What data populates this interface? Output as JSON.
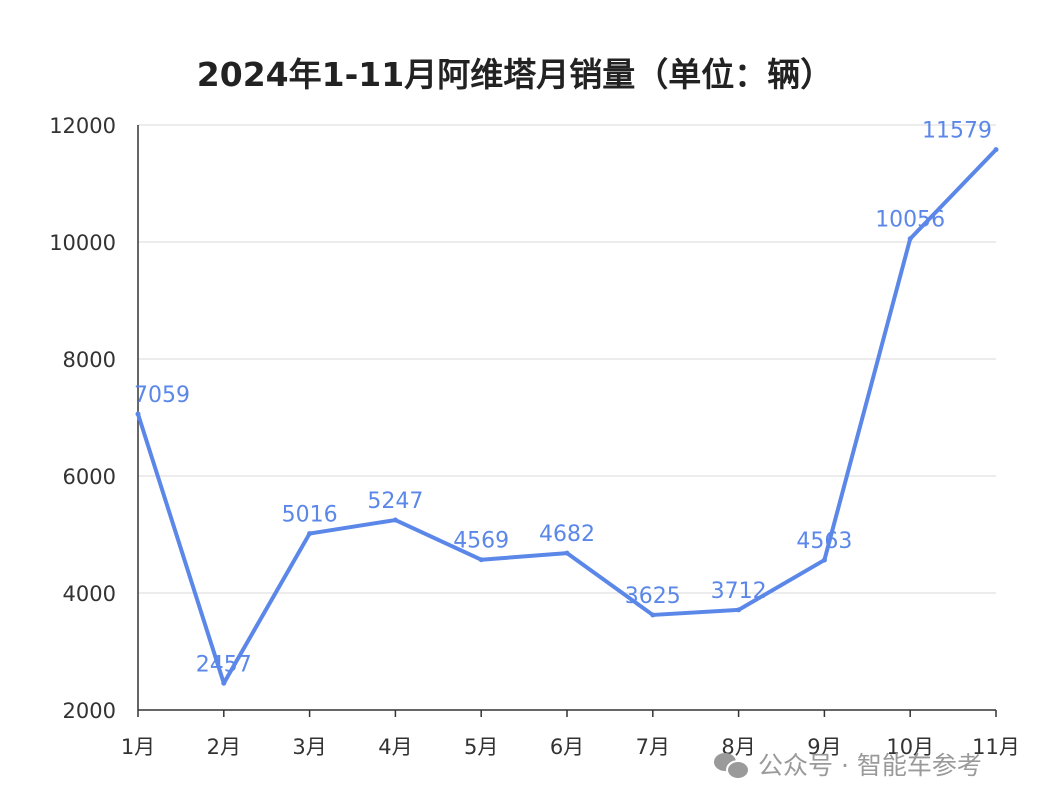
{
  "chart_data": {
    "type": "line",
    "title": "2024年1-11月阿维塔月销量（单位：辆）",
    "categories": [
      "1月",
      "2月",
      "3月",
      "4月",
      "5月",
      "6月",
      "7月",
      "8月",
      "9月",
      "10月",
      "11月"
    ],
    "series": [
      {
        "values": [
          7059,
          2457,
          5016,
          5247,
          4569,
          4682,
          3625,
          3712,
          4563,
          10056,
          11579
        ]
      }
    ],
    "yticks": [
      2000,
      4000,
      6000,
      8000,
      10000,
      12000
    ],
    "ylim": [
      2000,
      12000
    ],
    "grid": true,
    "legend": "none",
    "colors": {
      "line": "#5b87e8",
      "label": "#5b87e8",
      "grid": "#d9d9d9",
      "axis": "#333333"
    }
  },
  "watermark": {
    "text": "公众号 · 智能车参考",
    "icon": "wechat-icon"
  }
}
